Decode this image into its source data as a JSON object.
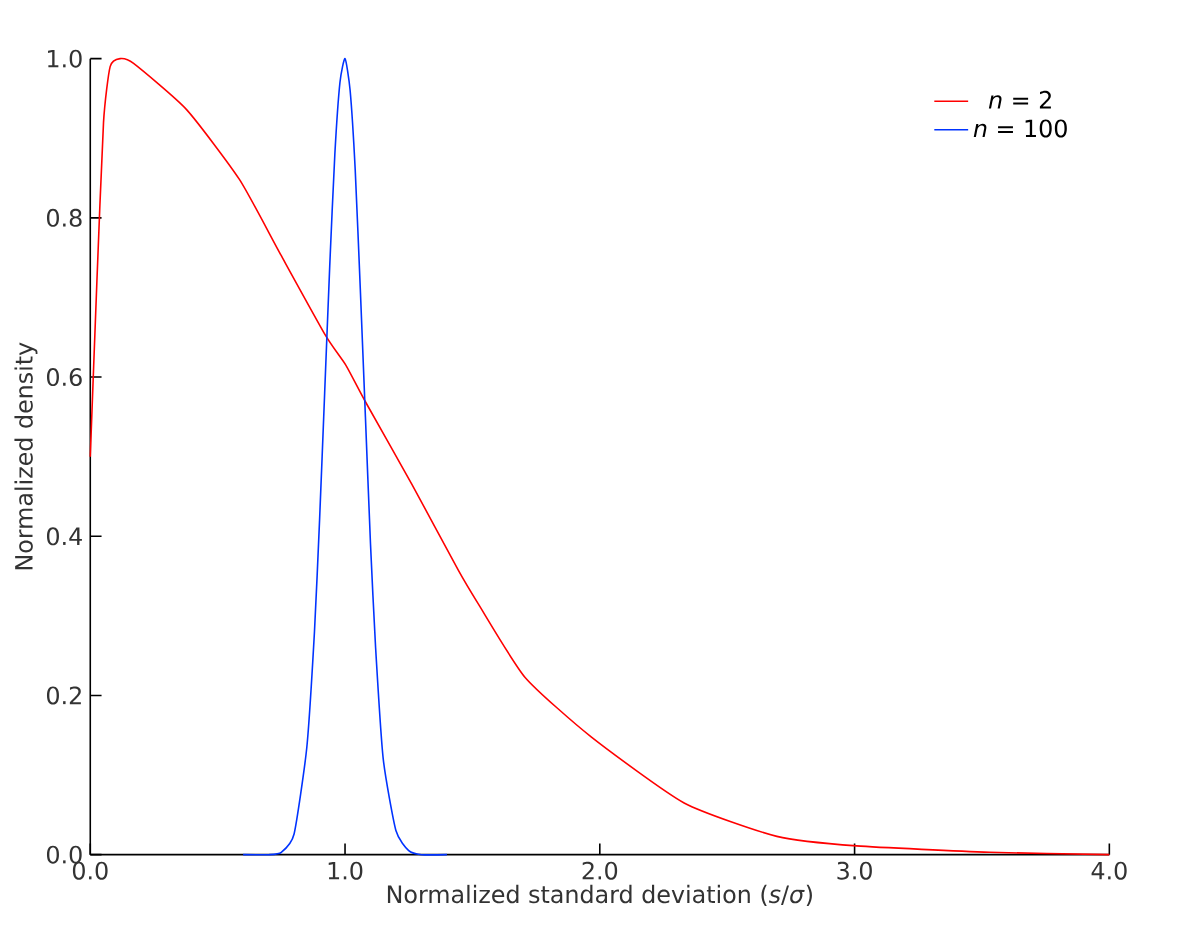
{
  "chart_data": {
    "type": "line",
    "xlabel": "Normalized standard deviation (*s*/*σ*)",
    "ylabel": "Normalized density",
    "xlim": [
      0,
      4
    ],
    "ylim": [
      0,
      1
    ],
    "xticks": [
      {
        "value": 0,
        "label": "0.0"
      },
      {
        "value": 1,
        "label": "1.0"
      },
      {
        "value": 2,
        "label": "2.0"
      },
      {
        "value": 3,
        "label": "3.0"
      },
      {
        "value": 4,
        "label": "4.0"
      }
    ],
    "yticks": [
      {
        "value": 0,
        "label": "0.0"
      },
      {
        "value": 0.2,
        "label": "0.2"
      },
      {
        "value": 0.4,
        "label": "0.4"
      },
      {
        "value": 0.6,
        "label": "0.6"
      },
      {
        "value": 0.8,
        "label": "0.8"
      },
      {
        "value": 1,
        "label": "1.0"
      }
    ],
    "grid": false,
    "legend": "top right",
    "marker": "none",
    "line_style": "solid",
    "series": [
      {
        "name": "*n* = 2",
        "color": "#ff0000",
        "x": [
          0,
          0.026,
          0.052,
          0.078,
          0.117,
          0.17,
          0.378,
          0.586,
          0.742,
          0.924,
          1.003,
          1.08,
          1.263,
          1.445,
          1.523,
          1.706,
          1.966,
          2.331,
          2.695,
          3.008,
          3.53,
          4.0
        ],
        "values": [
          0.5,
          0.72,
          0.92,
          0.99,
          1.0,
          0.994,
          0.936,
          0.848,
          0.757,
          0.652,
          0.615,
          0.569,
          0.465,
          0.357,
          0.315,
          0.223,
          0.148,
          0.065,
          0.023,
          0.011,
          0.003,
          0.0
        ]
      },
      {
        "name": "*n* = 100",
        "color": "#0033ff",
        "x": [
          0.6,
          0.7,
          0.75,
          0.8,
          0.85,
          0.88,
          0.9,
          0.92,
          0.94,
          0.96,
          0.98,
          1.0,
          1.02,
          1.04,
          1.06,
          1.08,
          1.1,
          1.12,
          1.15,
          1.2,
          1.25,
          1.3,
          1.4
        ],
        "values": [
          0,
          0,
          0.003,
          0.026,
          0.135,
          0.28,
          0.42,
          0.58,
          0.74,
          0.88,
          0.97,
          1.0,
          0.96,
          0.86,
          0.71,
          0.55,
          0.39,
          0.26,
          0.12,
          0.03,
          0.005,
          0,
          0
        ]
      }
    ]
  }
}
